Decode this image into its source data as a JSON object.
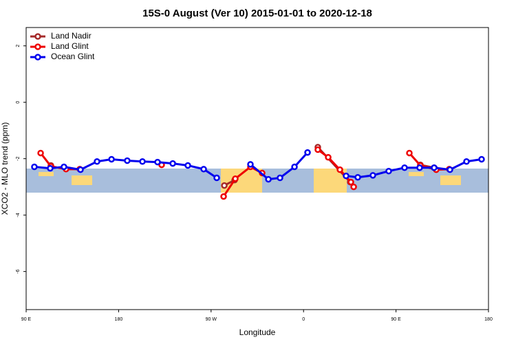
{
  "chart_data": {
    "type": "line",
    "title": "15S-0 August (Ver 10)   2015-01-01 to 2020-12-18",
    "x_label": "Longitude",
    "y_label": "XCO2 - MLO trend (ppm)",
    "xlim": [
      90,
      540
    ],
    "xticks": [
      {
        "value": 90,
        "label": "90 E"
      },
      180,
      {
        "value": 270,
        "label": "90 W"
      },
      {
        "value": 360,
        "label": "0"
      },
      {
        "value": 450,
        "label": "90 E"
      },
      {
        "value": 540,
        "label": "180"
      }
    ],
    "ylim": [
      -7.35,
      2.65
    ],
    "yticks": [
      2,
      0,
      -2,
      -4,
      -6
    ],
    "legend": "top-left",
    "series": [
      {
        "name": "Land Nadir",
        "color": "#a52a2a",
        "x": [
          114.1,
          null,
          282.9,
          292.9,
          null,
          373.9,
          405.4,
          null,
          473.7,
          487.1
        ],
        "values": [
          -2.24,
          null,
          -2.95,
          -2.76,
          null,
          -1.59,
          -2.83,
          null,
          -2.22,
          -2.32
        ]
      },
      {
        "name": "Land Glint",
        "color": "#ee0000",
        "x": [
          104.1,
          114.1,
          128.8,
          142.2,
          null,
          221.9,
          null,
          282.2,
          293.6,
          308.3,
          319.7,
          null,
          373.9,
          384.0,
          395.4,
          406.1,
          408.8,
          null,
          463.0,
          473.7,
          489.1,
          501.8
        ],
        "values": [
          -1.8,
          -2.27,
          -2.37,
          -2.37,
          null,
          -2.22,
          null,
          -3.34,
          -2.71,
          -2.29,
          -2.51,
          null,
          -1.68,
          -1.95,
          -2.39,
          -2.83,
          -3.0,
          null,
          -1.8,
          -2.24,
          -2.39,
          -2.37
        ]
      },
      {
        "name": "Ocean Glint",
        "color": "#0000ee",
        "x": [
          98.0,
          113.4,
          126.8,
          142.9,
          159.0,
          173.1,
          188.4,
          203.2,
          217.9,
          232.7,
          247.4,
          262.8,
          275.5,
          null,
          308.3,
          325.8,
          337.1,
          351.2,
          363.9,
          null,
          401.4,
          412.8,
          427.5,
          442.9,
          458.3,
          473.0,
          487.1,
          502.5,
          518.6,
          533.3
        ],
        "values": [
          -2.29,
          -2.34,
          -2.29,
          -2.39,
          -2.1,
          -2.02,
          -2.07,
          -2.1,
          -2.12,
          -2.17,
          -2.24,
          -2.37,
          -2.68,
          null,
          -2.2,
          -2.73,
          -2.68,
          -2.29,
          -1.78,
          null,
          -2.61,
          -2.66,
          -2.59,
          -2.44,
          -2.32,
          -2.32,
          -2.32,
          -2.39,
          -2.1,
          -2.02
        ]
      }
    ]
  }
}
